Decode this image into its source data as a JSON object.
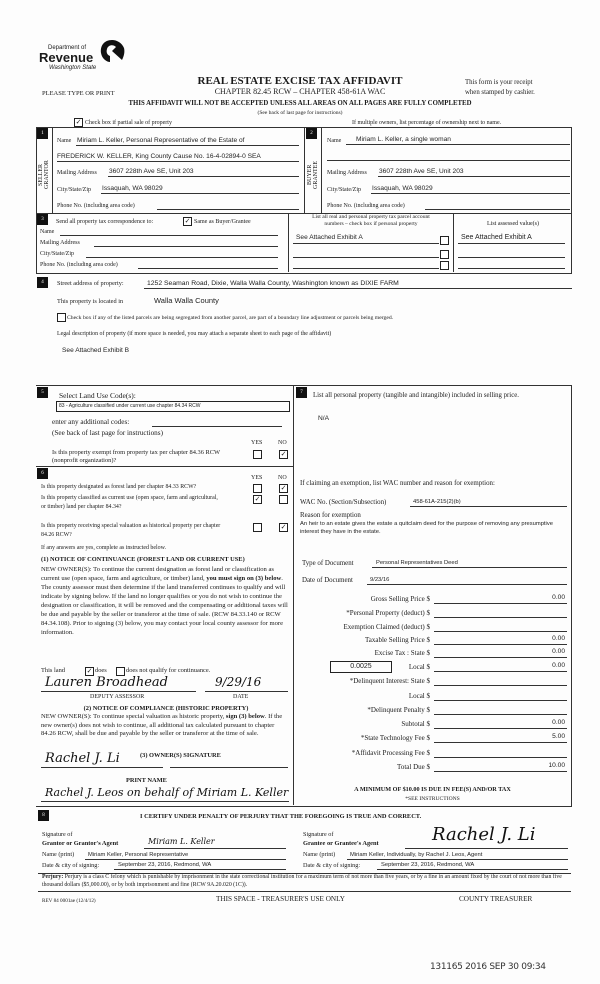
{
  "header": {
    "logo": {
      "line1": "Department of",
      "line2": "Revenue",
      "line3": "Washington State"
    },
    "title": "REAL ESTATE EXCISE TAX AFFIDAVIT",
    "subtitle": "CHAPTER 82.45 RCW – CHAPTER 458-61A WAC",
    "please_print": "PLEASE TYPE OR PRINT",
    "receipt_line1": "This form is your receipt",
    "receipt_line2": "when stamped by cashier.",
    "warning": "THIS AFFIDAVIT WILL NOT BE ACCEPTED UNLESS ALL AREAS ON ALL PAGES ARE FULLY COMPLETED",
    "instructions": "(See back of last page for instructions)",
    "partial_sale_label": "Check box if partial sale of property",
    "partial_sale_checked": true,
    "multiple_owners": "If multiple owners, list percentage of ownership next to name."
  },
  "seller": {
    "num": "1",
    "side_label1": "SELLER",
    "side_label2": "GRANTOR",
    "name_label": "Name",
    "name": "Miriam L. Keller,  Personal Representative of the Estate of",
    "name2": "FREDERICK W. KELLER, King County Cause No. 16-4-02894-0 SEA",
    "mailing_label": "Mailing Address",
    "mailing": "3607 228th Ave SE, Unit 203",
    "city_label": "City/State/Zip",
    "city": "Issaquah, WA 98029",
    "phone_label": "Phone No. (including area code)"
  },
  "buyer": {
    "num": "2",
    "side_label1": "BUYER",
    "side_label2": "GRANTEE",
    "name_label": "Name",
    "name": "Miriam L. Keller, a single woman",
    "mailing_label": "Mailing Address",
    "mailing": "3607 228th Ave SE, Unit 203",
    "city_label": "City/State/Zip",
    "city": "Issaquah, WA 98029",
    "phone_label": "Phone No. (including area code)"
  },
  "correspondence": {
    "num": "3",
    "label": "Send all property tax correspondence to:",
    "same_label": "Same as Buyer/Grantee",
    "same_checked": true,
    "name_label": "Name",
    "mailing_label": "Mailing Address",
    "city_label": "City/State/Zip",
    "phone_label": "Phone No. (including area code)",
    "parcel_header1": "List all real and personal property tax parcel account",
    "parcel_header2": "numbers – check box if personal property",
    "assessed_header": "List assessed value(s)",
    "parcels": [
      {
        "number": "See Attached Exhibit A",
        "personal": false,
        "value": "See Attached Exhibit A"
      },
      {
        "number": "",
        "personal": false,
        "value": ""
      },
      {
        "number": "",
        "personal": false,
        "value": ""
      },
      {
        "number": "",
        "personal": false,
        "value": ""
      }
    ]
  },
  "property": {
    "num": "4",
    "street_label": "Street address of property:",
    "street": "1252 Seaman Road, Dixie, Walla Walla County, Washington known as DIXIE FARM",
    "located_label": "This property is located in",
    "located": "Walla Walla County",
    "segregated_label": "Check box if any of the listed parcels are being segregated from another parcel, are part of a boundary line adjustment or parcels being merged.",
    "segregated_checked": false,
    "legal_label": "Legal description of property (if more space is needed, you may attach a separate sheet to each page of the affidavit)",
    "legal": "See Attached Exhibit B"
  },
  "land_use": {
    "num": "5",
    "label": "Select Land Use Code(s):",
    "code": "83 - Agriculture classified under current use chapter 84.34 RCW",
    "additional_label": "enter any additional codes:",
    "instructions": "(See back of last page for instructions)",
    "yes": "YES",
    "no": "NO",
    "exempt_q": "Is this property exempt from property tax per chapter 84.36 RCW (nonprofit organization)?",
    "exempt_answer": "NO"
  },
  "section6": {
    "num": "6",
    "yes": "YES",
    "no": "NO",
    "questions": [
      {
        "text": "Is this property designated as forest land per chapter 84.33 RCW?",
        "answer": "NO"
      },
      {
        "text": "Is this property classified as current use (open space, farm and agricultural, or timber) land per chapter 84.34?",
        "answer": "YES"
      },
      {
        "text": "Is this property receiving special valuation as historical property per chapter 84.26 RCW?",
        "answer": "NO"
      }
    ],
    "if_yes": "If any answers are yes, complete as instructed below.",
    "notice1_title": "(1) NOTICE OF CONTINUANCE (FOREST LAND OR CURRENT USE)",
    "notice1_a": "NEW OWNER(S): To continue the current designation as forest land or classification as current use (open space, farm and agriculture, or timber) land, ",
    "notice1_bold": "you must sign on (3) below",
    "notice1_b": ". The county assessor must then determine if the land transferred continues to qualify and will indicate by signing below. If the land no longer qualifies or you do not wish to continue the designation or classification, it will be removed and the compensating or additional taxes will be due and payable by the seller or transferor at the time of sale. (RCW 84.33.140 or RCW 84.34.108). Prior to signing (3) below, you may contact your local county assessor for more information.",
    "this_land": "This land",
    "does_label": "does",
    "does_checked": true,
    "does_not_label": "does not qualify for continuance.",
    "does_not_checked": false,
    "assessor_signature": "Lauren Broadhead",
    "assessor_date": "9/29/16",
    "deputy_assessor": "DEPUTY ASSESSOR",
    "date_label": "DATE",
    "notice2_title": "(2) NOTICE OF COMPLIANCE (HISTORIC PROPERTY)",
    "notice2_a": "NEW OWNER(S): To continue special valuation as historic property, ",
    "notice2_bold": "sign (3) below",
    "notice2_b": ". If the new owner(s) does not wish to continue, all additional tax calculated pursuant to chapter 84.26 RCW, shall be due and payable by the seller or transferor at the time of sale.",
    "owner_sig_label": "(3)  OWNER(S) SIGNATURE",
    "owner_signature": "Rachel J. Li",
    "print_name_label": "PRINT NAME",
    "print_name": "Rachel J. Leos on behalf of Miriam L. Keller"
  },
  "section7": {
    "num": "7",
    "label": "List all  personal property (tangible and intangible) included in selling price.",
    "value": "N/A",
    "exemption_label": "If claiming an exemption, list WAC number and reason for exemption:",
    "wac_label": "WAC No. (Section/Subsection)",
    "wac": "458-61A-215(2)(b)",
    "reason_label": "Reason for exemption",
    "reason": "An heir to an estate gives the estate a quitclaim deed for the purpose of removing any presumptive interest they have in the estate.",
    "doc_type_label": "Type of Document",
    "doc_type": "Personal Representatives Deed",
    "doc_date_label": "Date of Document",
    "doc_date": "9/23/16",
    "tax_rate": "0.0025",
    "amounts": [
      {
        "label": "Gross Selling Price $",
        "value": "0.00"
      },
      {
        "label": "*Personal Property (deduct) $",
        "value": ""
      },
      {
        "label": "Exemption Claimed (deduct) $",
        "value": ""
      },
      {
        "label": "Taxable Selling Price $",
        "value": "0.00"
      },
      {
        "label": "Excise Tax : State $",
        "value": "0.00"
      },
      {
        "label": "Local $",
        "value": "0.00"
      },
      {
        "label": "*Delinquent Interest: State $",
        "value": ""
      },
      {
        "label": "Local $",
        "value": ""
      },
      {
        "label": "*Delinquent Penalty $",
        "value": ""
      },
      {
        "label": "Subtotal $",
        "value": "0.00"
      },
      {
        "label": "*State Technology Fee $",
        "value": "5.00"
      },
      {
        "label": "*Affidavit Processing Fee $",
        "value": ""
      },
      {
        "label": "Total Due $",
        "value": "10.00"
      }
    ],
    "minimum": "A MINIMUM OF $10.00 IS DUE IN FEE(S) AND/OR TAX",
    "see_instructions": "*SEE INSTRUCTIONS"
  },
  "section8": {
    "num": "8",
    "certify": "I CERTIFY UNDER PENALTY OF PERJURY THAT THE FOREGOING IS TRUE AND CORRECT.",
    "grantor_sig_label1": "Signature of",
    "grantor_sig_label2": "Grantor or Grantor's Agent",
    "grantor_signature": "Miriam L. Keller",
    "grantor_name_label": "Name (print)",
    "grantor_name": "Miriam Keller, Personal Representative",
    "grantor_date_label": "Date & city of signing:",
    "grantor_date": "September 23, 2016, Redmond, WA",
    "grantee_sig_label1": "Signature of",
    "grantee_sig_label2": "Grantee or Grantee's Agent",
    "grantee_signature": "Rachel J. Li",
    "grantee_name_label": "Name (print)",
    "grantee_name": "Miriam Keller, Individually, by Rachel J. Leos, Agent",
    "grantee_date_label": "Date & city of signing:",
    "grantee_date": "September 23, 2016, Redmond, WA"
  },
  "footer": {
    "perjury_bold": "Perjury:",
    "perjury": " Perjury is a class C felony which is punishable by imprisonment in the state correctional institution for a maximum term of not more than five years, or by a fine in an amount fixed by the court of not more than five thousand dollars ($5,000.00), or by both imprisonment and fine (RCW 9A.20.020 (1C)).",
    "rev": "REV 84 0001ae (12/4/12)",
    "treasurer_use": "THIS SPACE - TREASURER'S USE ONLY",
    "county_treasurer": "COUNTY TREASURER",
    "stamp": "131165 2016 SEP 30 09:34"
  }
}
